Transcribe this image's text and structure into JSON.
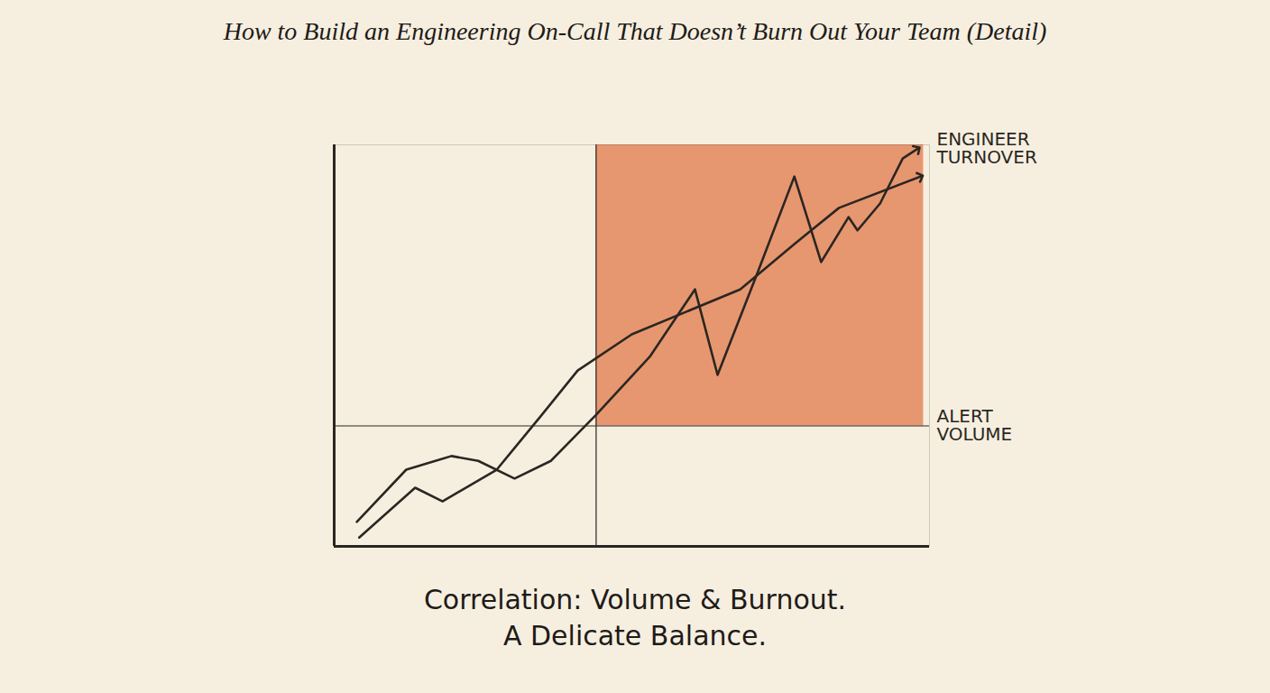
{
  "chart_data": {
    "type": "line",
    "title": "How to Build an Engineering On-Call That Doesn’t Burn Out Your Team (Detail)",
    "caption": [
      "Correlation: Volume & Burnout.",
      "A Delicate Balance."
    ],
    "xlim": [
      0,
      100
    ],
    "ylim": [
      0,
      100
    ],
    "xticks": [],
    "yticks": [],
    "tick_labels": false,
    "grid": false,
    "highlight": {
      "x": [
        44,
        99
      ],
      "y": [
        30,
        100
      ],
      "color": "#e0794a"
    },
    "series": [
      {
        "name": "ENGINEER TURNOVER",
        "color": "#2b2622",
        "marker": "arrow",
        "x": [
          3.8,
          12.1,
          19.7,
          24.2,
          30.3,
          36.4,
          43.9,
          53,
          60.6,
          64.4,
          71.2,
          77.3,
          81.8,
          86.4,
          87.9,
          91.7,
          95.5,
          98
        ],
        "values": [
          6.1,
          19.1,
          22.5,
          21.3,
          16.9,
          21.3,
          32.6,
          47.2,
          64,
          42.7,
          68.5,
          92.1,
          70.8,
          82,
          78.7,
          85.4,
          96.6,
          99
        ]
      },
      {
        "name": "ALERT VOLUME",
        "color": "#2b2622",
        "marker": "arrow",
        "x": [
          4.2,
          13.6,
          18.2,
          27.3,
          34.8,
          40.9,
          50,
          59.1,
          68.2,
          77.3,
          84.8,
          98.5
        ],
        "values": [
          2.2,
          14.6,
          11.2,
          19.1,
          32.6,
          43.8,
          52.8,
          58.4,
          64,
          75.3,
          84.3,
          92.1
        ]
      }
    ]
  }
}
